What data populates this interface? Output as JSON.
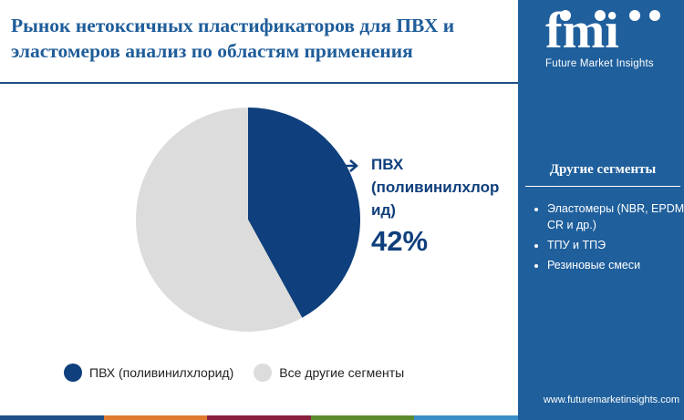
{
  "header": {
    "title": "Рынок нетоксичных пластификаторов для ПВХ и эластомеров анализ по областям применения"
  },
  "brand": {
    "logo_text": "fmi",
    "tagline": "Future Market Insights",
    "url": "www.futuremarketinsights.com",
    "panel_color": "#1f5f9c"
  },
  "chart_data": {
    "type": "pie",
    "title": "",
    "slices": [
      {
        "label": "ПВХ (поливинилхлорид)",
        "value": 42,
        "color": "#0f3f7c"
      },
      {
        "label": "Все другие сегменты",
        "value": 58,
        "color": "#dcdcdc"
      }
    ],
    "callout": {
      "label": "ПВХ (поливинилхлор ид)",
      "value_text": "42%"
    },
    "legend_position": "bottom"
  },
  "other_segments": {
    "title": "Другие сегменты",
    "items": [
      "Эластомеры (NBR, EPDM, CR и др.)",
      "ТПУ и ТПЭ",
      "Резиновые смеси"
    ]
  },
  "stripe_colors": [
    "#1f4f86",
    "#e07a2f",
    "#8a1f3d",
    "#5c8a2e",
    "#3a8fc6"
  ]
}
